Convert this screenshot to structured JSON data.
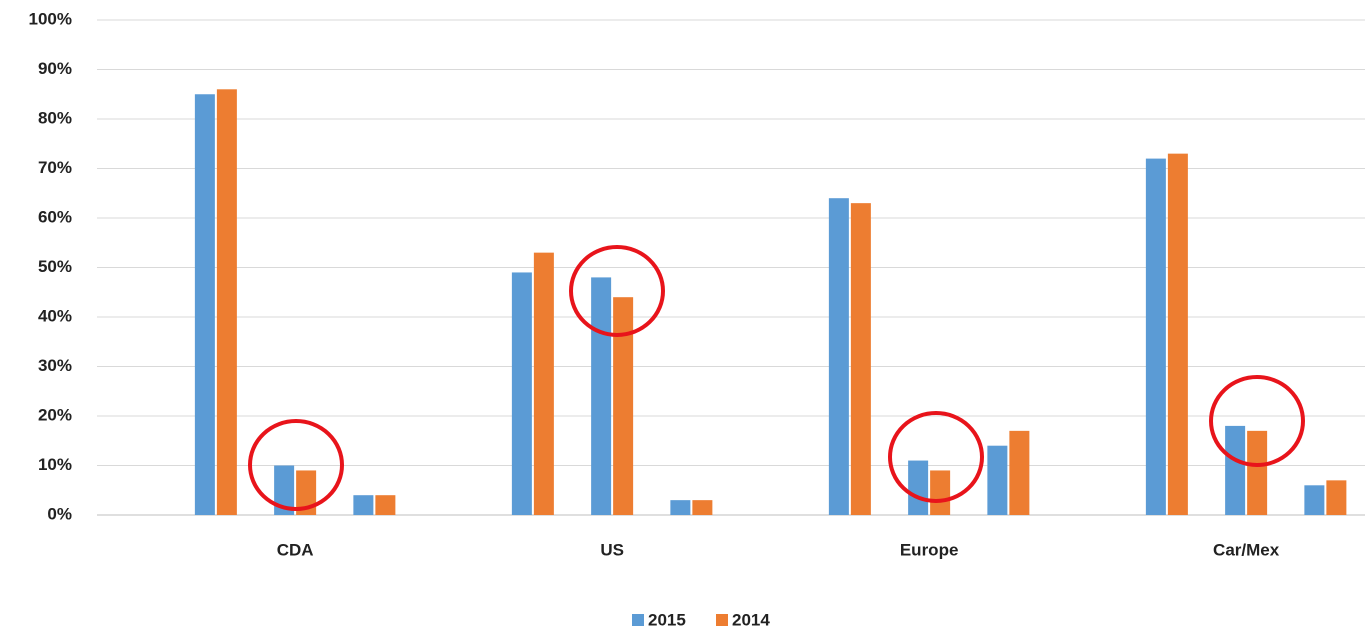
{
  "chart_data": {
    "type": "bar",
    "categories": [
      null,
      null,
      "CDA",
      null,
      null,
      null,
      "US",
      null,
      null,
      null,
      "Europe",
      null,
      null,
      null,
      "Car/Mex",
      null
    ],
    "series": [
      {
        "name": "2015",
        "color": "#5b9bd5",
        "values": [
          null,
          85,
          10,
          4,
          null,
          49,
          48,
          3,
          null,
          64,
          11,
          14,
          null,
          72,
          18,
          6
        ]
      },
      {
        "name": "2014",
        "color": "#ed7d31",
        "values": [
          null,
          86,
          9,
          4,
          null,
          53,
          44,
          3,
          null,
          63,
          9,
          17,
          null,
          73,
          17,
          7
        ]
      }
    ],
    "ylim": [
      0,
      100
    ],
    "yticks": [
      {
        "value": 0,
        "label": "0%"
      },
      {
        "value": 10,
        "label": "10%"
      },
      {
        "value": 20,
        "label": "20%"
      },
      {
        "value": 30,
        "label": "30%"
      },
      {
        "value": 40,
        "label": "40%"
      },
      {
        "value": 50,
        "label": "50%"
      },
      {
        "value": 60,
        "label": "60%"
      },
      {
        "value": 70,
        "label": "70%"
      },
      {
        "value": 80,
        "label": "80%"
      },
      {
        "value": 90,
        "label": "90%"
      },
      {
        "value": 100,
        "label": "100%"
      }
    ],
    "grid": true,
    "legend": "bottom"
  }
}
